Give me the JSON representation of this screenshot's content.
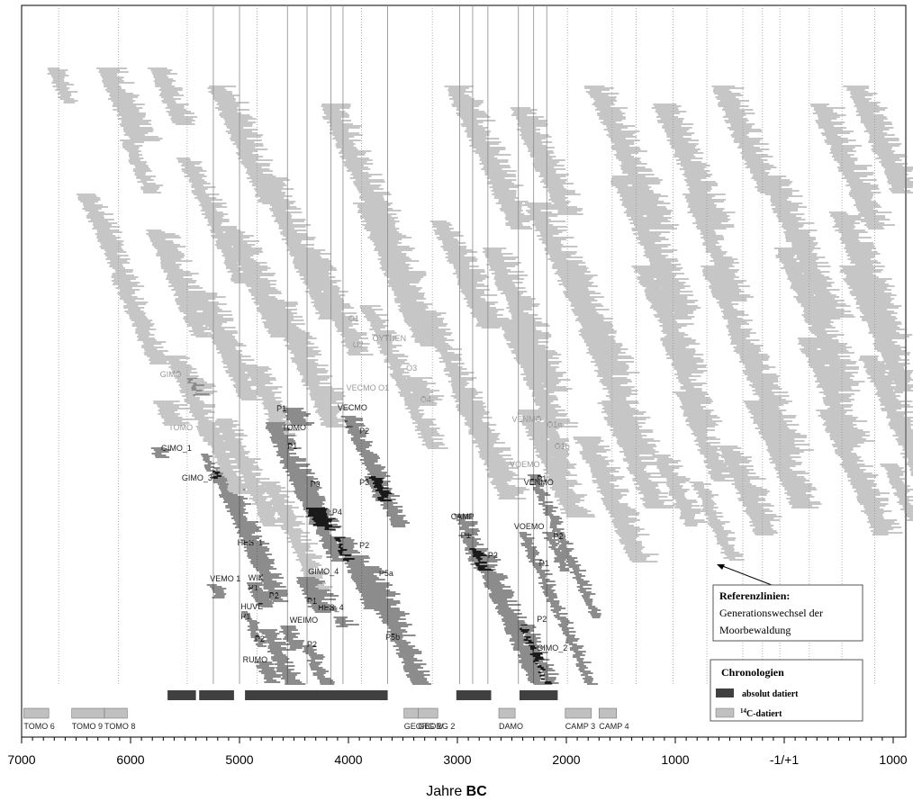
{
  "chart_data": {
    "type": "bar",
    "xlabel_prefix": "Jahre ",
    "xlabel_bold": "BC",
    "xlim": [
      7000,
      -1000
    ],
    "xticks": [
      {
        "value": 7000,
        "label": "7000"
      },
      {
        "value": 6000,
        "label": "6000"
      },
      {
        "value": 5000,
        "label": "5000"
      },
      {
        "value": 4000,
        "label": "4000"
      },
      {
        "value": 3000,
        "label": "3000"
      },
      {
        "value": 2000,
        "label": "2000"
      },
      {
        "value": 1000,
        "label": "1000"
      },
      {
        "value": 0,
        "label": "-1/+1"
      },
      {
        "value": -1000,
        "label": "1000"
      }
    ],
    "reference_lines": [
      5240,
      5000,
      4560,
      4380,
      4160,
      4050,
      3640,
      2980,
      2860,
      2720,
      2440,
      2300,
      2180
    ],
    "generation_lines": [
      6660,
      6110,
      5480,
      4840,
      3880,
      3230,
      1990,
      1580,
      1360,
      1020,
      710,
      380,
      200,
      40,
      -230,
      -530,
      -830
    ],
    "sequences": [
      {
        "label": "GIMO_1",
        "group": "absolute",
        "label_at": [
          5720,
          501
        ],
        "sites": [
          [
            5810,
            498,
            6,
            140
          ],
          [
            5350,
            505,
            14,
            90
          ],
          [
            5250,
            520,
            20,
            160
          ]
        ]
      },
      {
        "label": "GIMO_3",
        "group": "absolute",
        "label_at": [
          5530,
          534
        ],
        "sites": [
          [
            5240,
            530,
            52,
            200
          ]
        ]
      },
      {
        "label": "HES_1",
        "group": "absolute",
        "label_at": [
          5020,
          606
        ],
        "sites": [
          [
            4960,
            602,
            34,
            180
          ]
        ]
      },
      {
        "label": "VEMO 1",
        "group": "absolute",
        "label_at": [
          5270,
          646
        ],
        "sites": [
          [
            5280,
            650,
            8,
            120
          ]
        ]
      },
      {
        "label": "WIK",
        "group": "absolute",
        "label_at": [
          4920,
          645
        ],
        "sites": []
      },
      {
        "label": "P1",
        "group": "absolute",
        "label_at": [
          4920,
          656
        ],
        "sites": [
          [
            4930,
            648,
            12,
            150
          ]
        ]
      },
      {
        "label": "P2",
        "group": "absolute",
        "label_at": [
          4730,
          665
        ],
        "sites": [
          [
            4870,
            660,
            8,
            130
          ]
        ]
      },
      {
        "label": "HUVE",
        "group": "absolute",
        "label_at": [
          4990,
          677
        ],
        "sites": []
      },
      {
        "label": "P1",
        "group": "absolute",
        "label_at": [
          4990,
          688
        ],
        "sites": [
          [
            4980,
            680,
            20,
            80
          ]
        ]
      },
      {
        "label": "WEIMO",
        "group": "absolute",
        "label_at": [
          4540,
          692
        ],
        "sites": [
          [
            4640,
            696,
            14,
            150
          ]
        ]
      },
      {
        "label": "P2",
        "group": "absolute",
        "label_at": [
          4860,
          713
        ],
        "sites": [
          [
            4810,
            700,
            42,
            160
          ]
        ]
      },
      {
        "label": "RUMO",
        "group": "absolute",
        "label_at": [
          4970,
          736
        ],
        "sites": [
          [
            4840,
            736,
            12,
            150
          ]
        ]
      },
      {
        "label": "P1",
        "group": "absolute",
        "label_at": [
          4660,
          457
        ],
        "sites": [
          [
            4600,
            454,
            10,
            180
          ]
        ]
      },
      {
        "label": "TOMO",
        "group": "absolute",
        "label_at": [
          4610,
          478
        ],
        "sites": [
          [
            4770,
            470,
            58,
            200
          ]
        ]
      },
      {
        "label": "P1",
        "group": "absolute",
        "label_at": [
          4560,
          499
        ],
        "sites": []
      },
      {
        "label": "P3",
        "group": "absolute",
        "label_at": [
          4350,
          541
        ],
        "sites": [
          [
            4450,
            530,
            30,
            130
          ]
        ]
      },
      {
        "label": "P4",
        "group": "absolute",
        "label_at": [
          4150,
          572
        ],
        "sites": [
          [
            4380,
            565,
            30,
            200
          ]
        ]
      },
      {
        "label": "GIMO_4",
        "group": "absolute",
        "label_at": [
          4370,
          638
        ],
        "sites": [
          [
            4470,
            642,
            20,
            250
          ]
        ]
      },
      {
        "label": "P1",
        "group": "absolute",
        "label_at": [
          4380,
          671
        ],
        "sites": []
      },
      {
        "label": "HES_4",
        "group": "absolute",
        "label_at": [
          4280,
          678
        ],
        "sites": [
          [
            4130,
            686,
            6,
            150
          ]
        ]
      },
      {
        "label": "P2",
        "group": "absolute",
        "label_at": [
          4380,
          719
        ],
        "sites": [
          [
            4420,
            718,
            30,
            120
          ]
        ]
      },
      {
        "label": "VECMO",
        "group": "absolute",
        "label_at": [
          4100,
          456
        ],
        "sites": [
          [
            4050,
            463,
            62,
            150
          ]
        ]
      },
      {
        "label": "P2",
        "group": "absolute",
        "label_at": [
          3900,
          482
        ],
        "sites": []
      },
      {
        "label": "P3",
        "group": "absolute",
        "label_at": [
          3900,
          539
        ],
        "sites": [
          [
            3840,
            530,
            14,
            140
          ]
        ]
      },
      {
        "label": "P2",
        "group": "absolute",
        "label_at": [
          3900,
          609
        ],
        "sites": [
          [
            4130,
            598,
            40,
            200
          ]
        ]
      },
      {
        "label": "P5a",
        "group": "absolute",
        "label_at": [
          3720,
          640
        ],
        "sites": [
          [
            3920,
            630,
            32,
            200
          ]
        ]
      },
      {
        "label": "P5b",
        "group": "absolute",
        "label_at": [
          3660,
          711
        ],
        "sites": [
          [
            3830,
            648,
            102,
            200
          ]
        ]
      },
      {
        "label": "CAMP",
        "group": "absolute",
        "label_at": [
          3060,
          577
        ],
        "sites": [
          [
            3020,
            572,
            12,
            150
          ]
        ]
      },
      {
        "label": "P1",
        "group": "absolute",
        "label_at": [
          2970,
          598
        ],
        "sites": [
          [
            2980,
            595,
            20,
            150
          ]
        ]
      },
      {
        "label": "P2",
        "group": "absolute",
        "label_at": [
          2720,
          620
        ],
        "sites": [
          [
            2880,
            610,
            116,
            200
          ]
        ]
      },
      {
        "label": "VENMO",
        "group": "absolute",
        "label_at": [
          2390,
          539
        ],
        "sites": [
          [
            2350,
            528,
            80,
            100
          ]
        ]
      },
      {
        "label": "P1",
        "group": "absolute",
        "label_at": [
          2270,
          535
        ],
        "sites": []
      },
      {
        "label": "VOEMO",
        "group": "absolute",
        "label_at": [
          2480,
          588
        ],
        "sites": [
          [
            2440,
            592,
            92,
            100
          ]
        ]
      },
      {
        "label": "P2",
        "group": "absolute",
        "label_at": [
          2120,
          599
        ],
        "sites": [
          [
            2210,
            592,
            22,
            100
          ]
        ]
      },
      {
        "label": "P1",
        "group": "absolute",
        "label_at": [
          2250,
          629
        ],
        "sites": []
      },
      {
        "label": "P2",
        "group": "absolute",
        "label_at": [
          2270,
          691
        ],
        "sites": []
      },
      {
        "label": "GIMO_2",
        "group": "absolute",
        "label_at": [
          2270,
          723
        ],
        "sites": [
          [
            2430,
            695,
            50,
            120
          ]
        ]
      },
      {
        "label": "GIMO",
        "group": "c14",
        "label_at": [
          5730,
          419
        ],
        "sites": [
          [
            5470,
            421,
            10,
            200
          ]
        ]
      },
      {
        "label": "TOMO",
        "group": "c14",
        "label_at": [
          5650,
          478
        ],
        "sites": [
          [
            5370,
            470,
            40,
            200
          ]
        ]
      },
      {
        "label": "O1",
        "group": "c14",
        "label_at": [
          4000,
          357
        ],
        "sites": []
      },
      {
        "label": "O2",
        "group": "c14",
        "label_at": [
          3960,
          386
        ],
        "sites": []
      },
      {
        "label": "OYTHEN",
        "group": "c14",
        "label_at": [
          3780,
          379
        ],
        "sites": [
          [
            3880,
            340,
            80,
            180
          ]
        ]
      },
      {
        "label": "VECMO O1",
        "group": "c14",
        "label_at": [
          4020,
          434
        ],
        "sites": [
          [
            4230,
            432,
            6,
            160
          ]
        ]
      },
      {
        "label": "O3",
        "group": "c14",
        "label_at": [
          3470,
          412
        ],
        "sites": [
          [
            3480,
            420,
            16,
            230
          ]
        ]
      },
      {
        "label": "O4",
        "group": "c14",
        "label_at": [
          3340,
          447
        ],
        "sites": []
      },
      {
        "label": "VENMO",
        "group": "c14",
        "label_at": [
          2500,
          469
        ],
        "sites": []
      },
      {
        "label": "O1a",
        "group": "c14",
        "label_at": [
          2180,
          475
        ],
        "sites": [
          [
            2230,
            470,
            16,
            150
          ]
        ]
      },
      {
        "label": "O1b",
        "group": "c14",
        "label_at": [
          2110,
          499
        ],
        "sites": [
          [
            2200,
            490,
            20,
            150
          ]
        ]
      },
      {
        "label": "VOEMO",
        "group": "c14",
        "label_at": [
          2520,
          519
        ],
        "sites": []
      }
    ],
    "background_bands": [
      [
        6770,
        76,
        20,
        150
      ],
      [
        6310,
        76,
        42,
        250
      ],
      [
        5830,
        76,
        32,
        200
      ],
      [
        5290,
        96,
        66,
        250
      ],
      [
        4270,
        116,
        98,
        250
      ],
      [
        3110,
        96,
        80,
        250
      ],
      [
        2520,
        120,
        60,
        250
      ],
      [
        1820,
        96,
        80,
        250
      ],
      [
        1210,
        116,
        70,
        250
      ],
      [
        670,
        96,
        60,
        250
      ],
      [
        -240,
        116,
        70,
        250
      ],
      [
        -560,
        96,
        60,
        250
      ],
      [
        6090,
        156,
        30,
        160
      ],
      [
        5560,
        176,
        70,
        200
      ],
      [
        4850,
        196,
        80,
        250
      ],
      [
        3940,
        226,
        80,
        250
      ],
      [
        3240,
        246,
        60,
        250
      ],
      [
        2380,
        226,
        80,
        250
      ],
      [
        1600,
        196,
        80,
        250
      ],
      [
        940,
        216,
        60,
        200
      ],
      [
        230,
        196,
        80,
        250
      ],
      [
        -410,
        236,
        70,
        250
      ],
      [
        6480,
        216,
        50,
        200
      ],
      [
        5860,
        256,
        60,
        250
      ],
      [
        5150,
        256,
        60,
        250
      ],
      [
        4430,
        276,
        60,
        200
      ],
      [
        3700,
        296,
        40,
        250
      ],
      [
        2780,
        276,
        80,
        250
      ],
      [
        2070,
        296,
        60,
        250
      ],
      [
        1380,
        296,
        60,
        250
      ],
      [
        760,
        296,
        70,
        200
      ],
      [
        90,
        276,
        80,
        250
      ],
      [
        -510,
        296,
        70,
        250
      ],
      [
        6180,
        306,
        50,
        200
      ],
      [
        5430,
        326,
        60,
        250
      ],
      [
        4740,
        336,
        70,
        250
      ],
      [
        3350,
        346,
        60,
        200
      ],
      [
        2620,
        356,
        60,
        250
      ],
      [
        1890,
        366,
        70,
        250
      ],
      [
        1140,
        376,
        50,
        200
      ],
      [
        530,
        366,
        70,
        250
      ],
      [
        -120,
        376,
        60,
        250
      ],
      [
        -690,
        396,
        70,
        250
      ],
      [
        5670,
        396,
        50,
        200
      ],
      [
        4950,
        406,
        40,
        200
      ],
      [
        3050,
        436,
        60,
        250
      ],
      [
        2450,
        456,
        60,
        250
      ],
      [
        1700,
        446,
        60,
        250
      ],
      [
        1010,
        436,
        50,
        200
      ],
      [
        360,
        446,
        60,
        250
      ],
      [
        -310,
        456,
        70,
        250
      ],
      [
        -900,
        516,
        32,
        150
      ],
      [
        1920,
        486,
        70,
        250
      ],
      [
        1200,
        506,
        40,
        200
      ],
      [
        620,
        496,
        50,
        250
      ],
      [
        850,
        536,
        44,
        160
      ],
      [
        5780,
        446,
        14,
        250
      ],
      [
        5220,
        466,
        60,
        200
      ],
      [
        4790,
        536,
        60,
        200
      ]
    ],
    "absolute_bars": [
      [
        5660,
        5400
      ],
      [
        5370,
        5050
      ],
      [
        4950,
        3640
      ],
      [
        3010,
        2690
      ],
      [
        2430,
        2080
      ]
    ],
    "c14_bars": [
      {
        "label": "TOMO 6",
        "from": 6980,
        "to": 6750
      },
      {
        "label": "TOMO 9",
        "from": 6540,
        "to": 6240
      },
      {
        "label": "TOMO 8",
        "from": 6240,
        "to": 6030
      },
      {
        "label": "GEORG 1/",
        "from": 3490,
        "to": 3360
      },
      {
        "label": "GEORG 2",
        "from": 3360,
        "to": 3180
      },
      {
        "label": "DAMO",
        "from": 2620,
        "to": 2470
      },
      {
        "label": "CAMP 3",
        "from": 2010,
        "to": 1770
      },
      {
        "label": "CAMP 4",
        "from": 1700,
        "to": 1540
      }
    ],
    "reference_box": {
      "title": "Referenzlinien:",
      "lines": [
        "Generationswechsel der",
        "Moorbewaldung"
      ]
    },
    "legend": {
      "title": "Chronologien",
      "items": [
        {
          "label": "absolut datiert",
          "color": "#404040"
        },
        {
          "sup": "14",
          "label": "C-datiert",
          "color": "#c0c0c0"
        }
      ]
    },
    "colors": {
      "absolute": "#1a1a1a",
      "c14": "#8c8c8c",
      "absolute_bar": "#404040",
      "c14_bar": "#c0c0c0"
    }
  }
}
